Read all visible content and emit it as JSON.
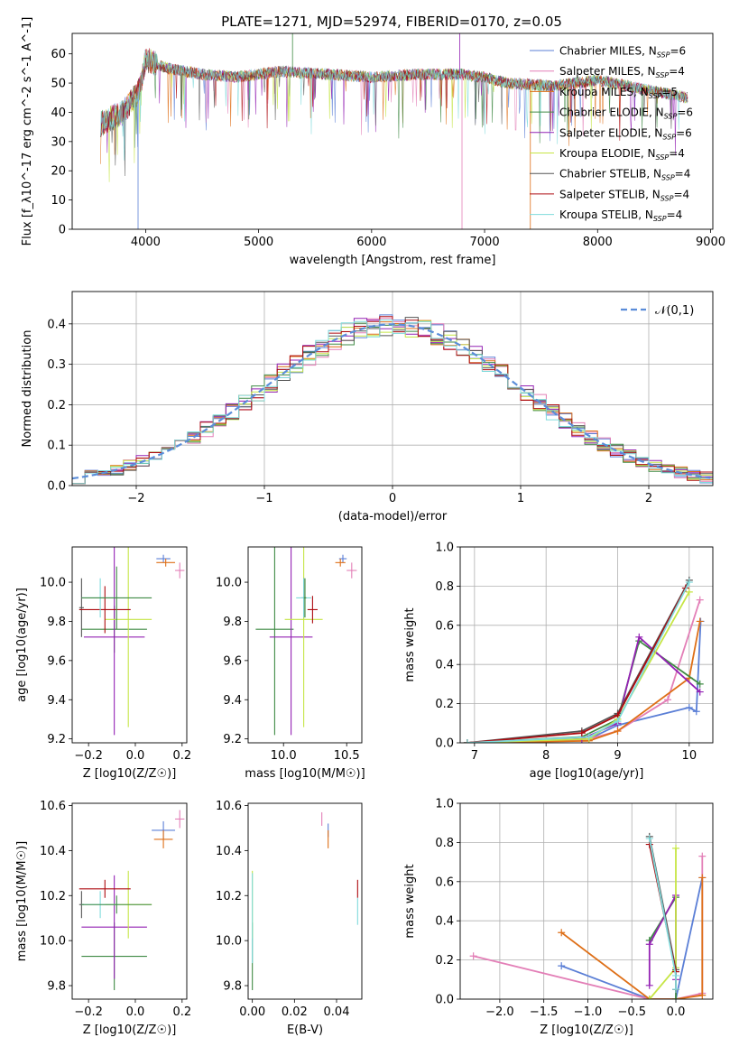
{
  "title": "PLATE=1271, MJD=52974, FIBERID=0170, z=0.05",
  "models": [
    {
      "name": "Chabrier MILES",
      "nssp": "6",
      "color": "#5b7fd6"
    },
    {
      "name": "Salpeter MILES",
      "nssp": "4",
      "color": "#e37fb7"
    },
    {
      "name": "Kroupa MILES",
      "nssp": "5",
      "color": "#de6f17"
    },
    {
      "name": "Chabrier ELODIE",
      "nssp": "6",
      "color": "#3f8a44"
    },
    {
      "name": "Salpeter ELODIE",
      "nssp": "6",
      "color": "#9422b4"
    },
    {
      "name": "Kroupa ELODIE",
      "nssp": "4",
      "color": "#c6e545"
    },
    {
      "name": "Chabrier STELIB",
      "nssp": "4",
      "color": "#555555"
    },
    {
      "name": "Salpeter STELIB",
      "nssp": "4",
      "color": "#ad0b10"
    },
    {
      "name": "Kroupa STELIB",
      "nssp": "4",
      "color": "#7fdbdc"
    }
  ],
  "chart_data": [
    {
      "id": "spectrum",
      "type": "line",
      "xlabel": "wavelength [Angstrom, rest frame]",
      "ylabel": "Flux [f_λ10^-17 erg cm^-2 s^-1 A^-1]",
      "xlim": [
        3350,
        9020
      ],
      "ylim": [
        0,
        67
      ],
      "xticks": [
        4000,
        5000,
        6000,
        7000,
        8000,
        9000
      ],
      "yticks": [
        0,
        10,
        20,
        30,
        40,
        50,
        60
      ],
      "grid": false,
      "legend": "top-right",
      "continuum_x": [
        3600,
        3800,
        3950,
        4000,
        4200,
        4500,
        4800,
        5200,
        5600,
        6000,
        6400,
        6800,
        7000,
        7200,
        7600,
        8000,
        8400,
        8800
      ],
      "continuum_y": [
        36,
        40,
        48,
        58,
        55,
        53,
        52,
        54,
        53,
        52,
        53,
        53,
        52,
        50,
        49,
        51,
        48,
        45
      ],
      "deep_lines": [
        {
          "x": 3933,
          "y": 0
        },
        {
          "x": 6800,
          "y": 0
        },
        {
          "x": 7405,
          "y": 0
        },
        {
          "x": 5300,
          "y": 67
        },
        {
          "x": 6780,
          "y": 67
        }
      ]
    },
    {
      "id": "residuals",
      "type": "line",
      "xlabel": "(data-model)/error",
      "ylabel": "Normed distribution",
      "xlim": [
        -2.5,
        2.5
      ],
      "ylim": [
        0,
        0.48
      ],
      "xticks": [
        -2,
        -1,
        0,
        1,
        2
      ],
      "yticks": [
        0.0,
        0.1,
        0.2,
        0.3,
        0.4
      ],
      "grid": true,
      "legend": "top-right",
      "reference": {
        "name": "𝒩(0,1)",
        "color": "#5b8dd9"
      },
      "bin_width": 0.1
    },
    {
      "id": "age_vs_Z",
      "type": "scatter",
      "xlabel": "Z [log10(Z/Z☉)]",
      "ylabel": "age  [log10(age/yr)]",
      "xlim": [
        -0.27,
        0.22
      ],
      "ylim": [
        9.18,
        10.18
      ],
      "xticks": [
        -0.2,
        0.0,
        0.2
      ],
      "yticks": [
        9.2,
        9.4,
        9.6,
        9.8,
        10.0
      ],
      "grid": false,
      "points": [
        {
          "m": 0,
          "x": 0.12,
          "y": 10.12,
          "xe": 0.03,
          "ye": 0.02
        },
        {
          "m": 1,
          "x": 0.19,
          "y": 10.06,
          "xe": 0.02,
          "ye": 0.04
        },
        {
          "m": 2,
          "x": 0.13,
          "y": 10.1,
          "xe": 0.04,
          "ye": 0.02
        },
        {
          "m": 3,
          "x": -0.09,
          "y": 9.76,
          "xe": 0.14,
          "ye": 0.12
        },
        {
          "m": 4,
          "x": -0.09,
          "y": 9.72,
          "xe": 0.13,
          "ye": 0.5
        },
        {
          "m": 5,
          "x": -0.03,
          "y": 9.81,
          "xe": 0.1,
          "ye": 0.55
        },
        {
          "m": 6,
          "x": -0.23,
          "y": 9.87,
          "xe": 0.01,
          "ye": 0.15
        },
        {
          "m": 7,
          "x": -0.13,
          "y": 9.86,
          "xe": 0.11,
          "ye": 0.12
        },
        {
          "m": 8,
          "x": -0.15,
          "y": 9.92,
          "xe": 0.08,
          "ye": 0.1
        },
        {
          "m": 3,
          "x": -0.08,
          "y": 9.92,
          "xe": 0.15,
          "ye": 0.16
        }
      ]
    },
    {
      "id": "age_vs_mass",
      "type": "scatter",
      "xlabel": "mass [log10(M/M☉)]",
      "ylabel": "",
      "xlim": [
        9.72,
        10.62
      ],
      "ylim": [
        9.18,
        10.18
      ],
      "xticks": [
        10.0,
        10.5
      ],
      "yticks": [
        9.2,
        9.4,
        9.6,
        9.8,
        10.0
      ],
      "grid": false,
      "points": [
        {
          "m": 0,
          "x": 10.47,
          "y": 10.12,
          "xe": 0.03,
          "ye": 0.02
        },
        {
          "m": 1,
          "x": 10.54,
          "y": 10.06,
          "xe": 0.04,
          "ye": 0.04
        },
        {
          "m": 2,
          "x": 10.45,
          "y": 10.1,
          "xe": 0.04,
          "ye": 0.02
        },
        {
          "m": 3,
          "x": 9.93,
          "y": 9.76,
          "xe": 0.15,
          "ye": 0.54
        },
        {
          "m": 4,
          "x": 10.06,
          "y": 9.72,
          "xe": 0.17,
          "ye": 0.5
        },
        {
          "m": 5,
          "x": 10.16,
          "y": 9.81,
          "xe": 0.15,
          "ye": 0.55
        },
        {
          "m": 6,
          "x": 10.16,
          "y": 9.92,
          "xe": 0.02,
          "ye": 0.1
        },
        {
          "m": 7,
          "x": 10.23,
          "y": 9.86,
          "xe": 0.04,
          "ye": 0.07
        },
        {
          "m": 8,
          "x": 10.16,
          "y": 9.92,
          "xe": 0.06,
          "ye": 0.1
        },
        {
          "m": 3,
          "x": 10.17,
          "y": 9.92,
          "xe": 0.01,
          "ye": 0.1
        }
      ]
    },
    {
      "id": "weight_vs_age",
      "type": "line",
      "xlabel": "age  [log10(age/yr)]",
      "ylabel": "mass weight",
      "xlim": [
        6.8,
        10.33
      ],
      "ylim": [
        0,
        1.0
      ],
      "xticks": [
        7,
        8,
        9,
        10
      ],
      "yticks": [
        0.0,
        0.2,
        0.4,
        0.6,
        0.8,
        1.0
      ],
      "grid": true,
      "series": [
        {
          "m": 0,
          "x": [
            6.9,
            8.6,
            9.0,
            10.0,
            10.1,
            10.16
          ],
          "y": [
            0.0,
            0.02,
            0.09,
            0.18,
            0.16,
            0.62
          ]
        },
        {
          "m": 1,
          "x": [
            7.5,
            8.6,
            9.0,
            9.7,
            10.15
          ],
          "y": [
            0.0,
            0.02,
            0.06,
            0.22,
            0.73
          ]
        },
        {
          "m": 2,
          "x": [
            6.9,
            8.6,
            9.0,
            10.0,
            10.15
          ],
          "y": [
            0.0,
            0.01,
            0.06,
            0.33,
            0.62
          ]
        },
        {
          "m": 3,
          "x": [
            6.9,
            8.5,
            9.0,
            9.3,
            10.15
          ],
          "y": [
            0.0,
            0.03,
            0.12,
            0.52,
            0.3
          ]
        },
        {
          "m": 4,
          "x": [
            6.9,
            8.5,
            9.0,
            9.3,
            10.15
          ],
          "y": [
            0.0,
            0.02,
            0.1,
            0.54,
            0.26
          ]
        },
        {
          "m": 5,
          "x": [
            6.9,
            8.6,
            9.0,
            10.0
          ],
          "y": [
            0.0,
            0.02,
            0.12,
            0.77
          ]
        },
        {
          "m": 6,
          "x": [
            6.9,
            8.5,
            9.0,
            10.0
          ],
          "y": [
            0.0,
            0.06,
            0.15,
            0.83
          ]
        },
        {
          "m": 7,
          "x": [
            6.9,
            8.5,
            9.0,
            9.95
          ],
          "y": [
            0.0,
            0.05,
            0.14,
            0.79
          ]
        },
        {
          "m": 8,
          "x": [
            6.9,
            8.6,
            9.0,
            10.0
          ],
          "y": [
            0.0,
            0.03,
            0.11,
            0.82
          ]
        }
      ]
    },
    {
      "id": "mass_vs_Z",
      "type": "scatter",
      "xlabel": "Z [log10(Z/Z☉)]",
      "ylabel": "mass [log10(M/M☉)]",
      "xlim": [
        -0.27,
        0.22
      ],
      "ylim": [
        9.74,
        10.61
      ],
      "xticks": [
        -0.2,
        0.0,
        0.2
      ],
      "yticks": [
        9.8,
        10.0,
        10.2,
        10.4,
        10.6
      ],
      "grid": false,
      "points": [
        {
          "m": 0,
          "x": 0.12,
          "y": 10.49,
          "xe": 0.05,
          "ye": 0.04
        },
        {
          "m": 1,
          "x": 0.19,
          "y": 10.54,
          "xe": 0.02,
          "ye": 0.04
        },
        {
          "m": 2,
          "x": 0.12,
          "y": 10.45,
          "xe": 0.04,
          "ye": 0.04
        },
        {
          "m": 3,
          "x": -0.09,
          "y": 9.93,
          "xe": 0.14,
          "ye": 0.15
        },
        {
          "m": 4,
          "x": -0.09,
          "y": 10.06,
          "xe": 0.14,
          "ye": 0.23
        },
        {
          "m": 5,
          "x": -0.03,
          "y": 10.16,
          "xe": 0.1,
          "ye": 0.15
        },
        {
          "m": 6,
          "x": -0.23,
          "y": 10.16,
          "xe": 0.01,
          "ye": 0.06
        },
        {
          "m": 7,
          "x": -0.13,
          "y": 10.23,
          "xe": 0.11,
          "ye": 0.04
        },
        {
          "m": 8,
          "x": -0.15,
          "y": 10.16,
          "xe": 0.08,
          "ye": 0.06
        },
        {
          "m": 3,
          "x": -0.08,
          "y": 10.16,
          "xe": 0.15,
          "ye": 0.04
        }
      ]
    },
    {
      "id": "mass_vs_ebv",
      "type": "scatter",
      "xlabel": "E(B-V)",
      "ylabel": "",
      "xlim": [
        -0.002,
        0.052
      ],
      "ylim": [
        9.74,
        10.61
      ],
      "xticks": [
        0.0,
        0.02,
        0.04
      ],
      "yticks": [
        9.8,
        10.0,
        10.2,
        10.4,
        10.6
      ],
      "grid": false,
      "points": [
        {
          "m": 0,
          "x": 0.036,
          "y": 10.49,
          "xe": 0,
          "ye": 0.03
        },
        {
          "m": 1,
          "x": 0.033,
          "y": 10.54,
          "xe": 0,
          "ye": 0.03
        },
        {
          "m": 2,
          "x": 0.036,
          "y": 10.45,
          "xe": 0,
          "ye": 0.04
        },
        {
          "m": 3,
          "x": 0.0,
          "y": 9.93,
          "xe": 0,
          "ye": 0.15
        },
        {
          "m": 5,
          "x": 0.0,
          "y": 10.16,
          "xe": 0,
          "ye": 0.15
        },
        {
          "m": 8,
          "x": 0.0,
          "y": 10.1,
          "xe": 0,
          "ye": 0.2
        },
        {
          "m": 7,
          "x": 0.05,
          "y": 10.23,
          "xe": 0,
          "ye": 0.04
        },
        {
          "m": 8,
          "x": 0.05,
          "y": 10.13,
          "xe": 0,
          "ye": 0.06
        }
      ]
    },
    {
      "id": "weight_vs_Z",
      "type": "line",
      "xlabel": "Z [log10(Z/Z☉)]",
      "ylabel": "mass weight",
      "xlim": [
        -2.45,
        0.42
      ],
      "ylim": [
        0,
        1.0
      ],
      "xticks": [
        -2.0,
        -1.5,
        -1.0,
        -0.5,
        0.0
      ],
      "yticks": [
        0.0,
        0.2,
        0.4,
        0.6,
        0.8,
        1.0
      ],
      "grid": true,
      "series": [
        {
          "m": 0,
          "x": [
            -1.3,
            -0.3,
            0.0,
            0.3
          ],
          "y": [
            0.17,
            0.0,
            0.0,
            0.62
          ]
        },
        {
          "m": 1,
          "x": [
            -2.3,
            -0.3,
            0.0,
            0.3,
            0.3
          ],
          "y": [
            0.22,
            0.0,
            0.0,
            0.03,
            0.73
          ]
        },
        {
          "m": 2,
          "x": [
            -1.3,
            -0.3,
            0.0,
            0.3,
            0.3
          ],
          "y": [
            0.34,
            0.0,
            0.0,
            0.02,
            0.62
          ]
        },
        {
          "m": 3,
          "x": [
            -0.3,
            0.0,
            0.0
          ],
          "y": [
            0.3,
            0.52,
            0.0
          ]
        },
        {
          "m": 4,
          "x": [
            -0.3,
            -0.3,
            0.0,
            0.0
          ],
          "y": [
            0.07,
            0.28,
            0.53,
            0.1
          ]
        },
        {
          "m": 5,
          "x": [
            -0.3,
            0.0,
            0.0
          ],
          "y": [
            0.0,
            0.16,
            0.77
          ]
        },
        {
          "m": 6,
          "x": [
            -0.3,
            0.0,
            0.0
          ],
          "y": [
            0.83,
            0.15,
            0.05
          ]
        },
        {
          "m": 7,
          "x": [
            -0.3,
            0.0,
            0.0
          ],
          "y": [
            0.79,
            0.14,
            0.05
          ]
        },
        {
          "m": 8,
          "x": [
            -0.3,
            0.0,
            0.0
          ],
          "y": [
            0.82,
            0.12,
            0.05
          ]
        }
      ]
    }
  ]
}
